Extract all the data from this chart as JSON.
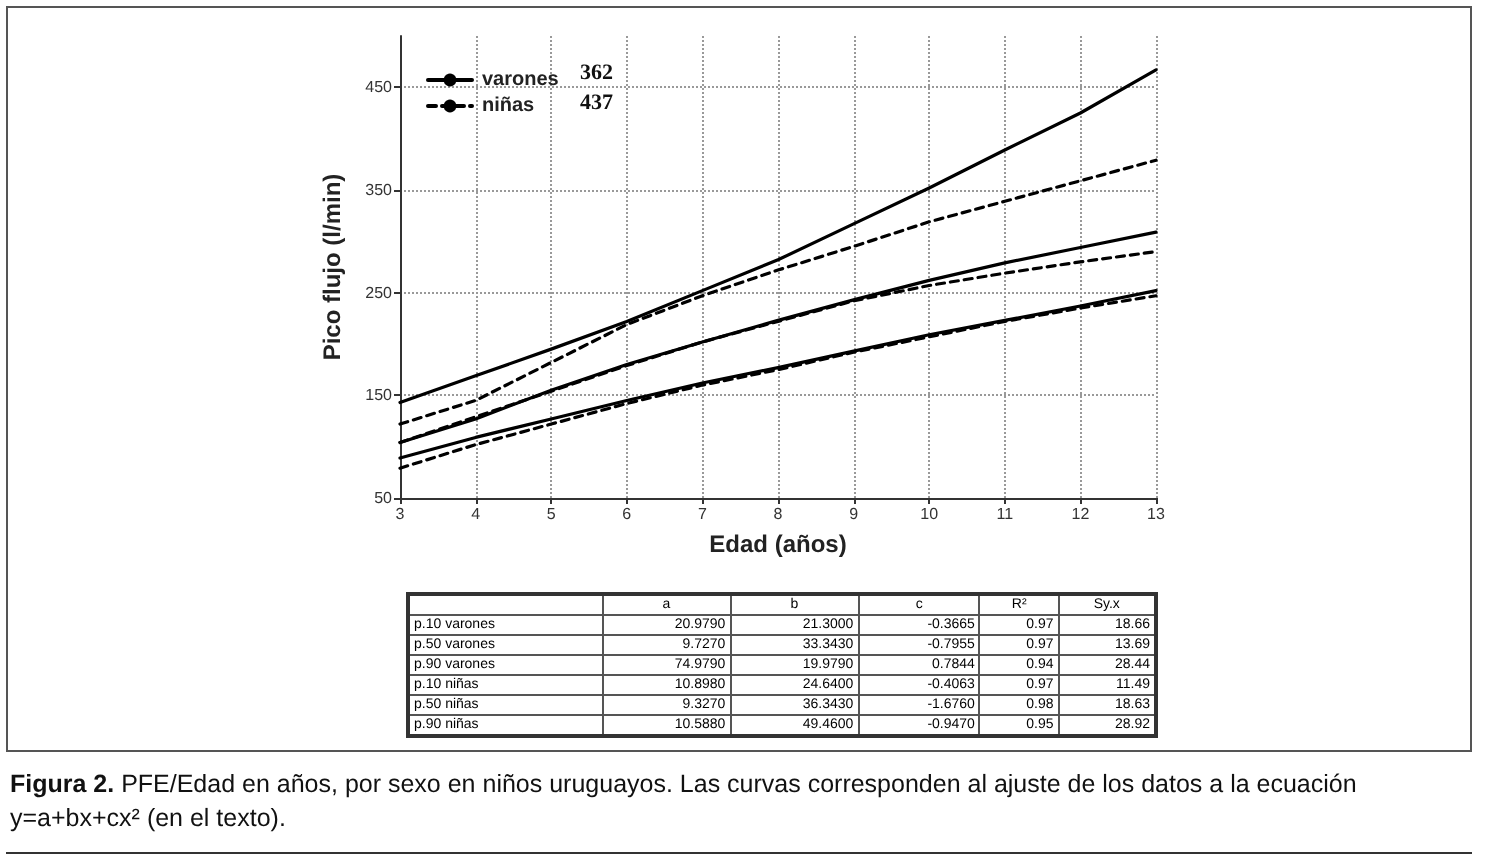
{
  "chart_data": {
    "type": "line",
    "title": "Figura 2. PFE/Edad en años, por sexo en niños uruguayos. Las curvas corresponden al ajuste de los datos a la ecuación y=a+bx+cx² (en el texto).",
    "xlabel": "Edad (años)",
    "ylabel": "Pico flujo (l/min)",
    "x": [
      3,
      4,
      5,
      6,
      7,
      8,
      9,
      10,
      11,
      12,
      13
    ],
    "series": [
      {
        "name": "varones",
        "color": "#000000",
        "line_style": "solid",
        "values": [
          143,
          169,
          195,
          222,
          252,
          282,
          317,
          352,
          389,
          425,
          467
        ]
      },
      {
        "color": "#000000",
        "line_style": "solid",
        "values": [
          104,
          127,
          155,
          180,
          202,
          223,
          243,
          262,
          279,
          294,
          309
        ]
      },
      {
        "color": "#000000",
        "line_style": "solid",
        "values": [
          89,
          109,
          127,
          145,
          162,
          177,
          193,
          209,
          223,
          237,
          252
        ]
      },
      {
        "name": "niñas",
        "color": "#000000",
        "line_style": "dashed",
        "values": [
          122,
          145,
          182,
          219,
          247,
          272,
          295,
          319,
          339,
          359,
          379
        ]
      },
      {
        "color": "#000000",
        "line_style": "dashed",
        "values": [
          104,
          129,
          154,
          179,
          202,
          222,
          242,
          257,
          269,
          280,
          290
        ]
      },
      {
        "color": "#000000",
        "line_style": "dashed",
        "values": [
          79,
          102,
          122,
          142,
          160,
          175,
          192,
          207,
          222,
          235,
          247
        ]
      }
    ],
    "xlim": [
      3,
      13
    ],
    "xticks": [
      3,
      4,
      5,
      6,
      7,
      8,
      9,
      10,
      11,
      12,
      13
    ],
    "ylim": [
      50,
      500
    ],
    "yticks": [
      50,
      150,
      250,
      350,
      450
    ],
    "grid": true,
    "legend": "top left",
    "marker": "none",
    "annotations": [
      "362",
      "437",
      "a",
      "b",
      "c",
      "R²",
      "Sy.x",
      "p.10 varones",
      "20.9790",
      "21.3000",
      "-0.3665",
      "0.97",
      "18.66",
      "p.50 varones",
      "9.7270",
      "33.3430",
      "-0.7955",
      "0.97",
      "13.69",
      "p.90 varones",
      "74.9790",
      "19.9790",
      "0.7844",
      "0.94",
      "28.44",
      "p.10 niñas",
      "10.8980",
      "24.6400",
      "-0.4063",
      "0.97",
      "11.49",
      "p.50 niñas",
      "9.3270",
      "36.3430",
      "-1.6760",
      "0.98",
      "18.63",
      "p.90 niñas",
      "10.5880",
      "49.4600",
      "-0.9470",
      "0.95",
      "28.92"
    ]
  }
}
